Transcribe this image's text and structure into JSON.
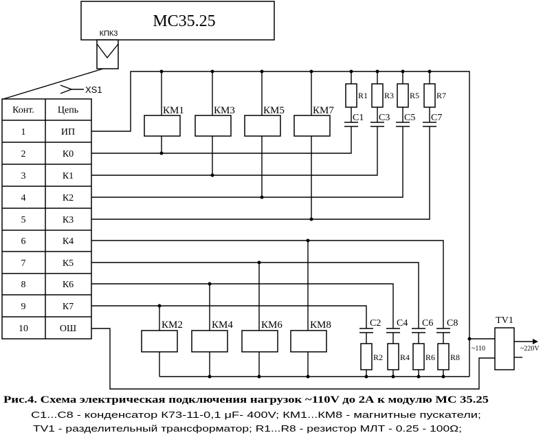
{
  "module": {
    "title": "МС35.25",
    "connector": "КПК3"
  },
  "connector_label": "XS1",
  "table": {
    "headers": [
      "Конт.",
      "Цепь"
    ],
    "rows": [
      [
        "1",
        "ИП"
      ],
      [
        "2",
        "К0"
      ],
      [
        "3",
        "К1"
      ],
      [
        "4",
        "К2"
      ],
      [
        "5",
        "К3"
      ],
      [
        "6",
        "К4"
      ],
      [
        "7",
        "К5"
      ],
      [
        "8",
        "К6"
      ],
      [
        "9",
        "К7"
      ],
      [
        "10",
        "ОШ"
      ]
    ]
  },
  "relays": {
    "top": [
      "КМ1",
      "КМ3",
      "КМ5",
      "КМ7"
    ],
    "bottom": [
      "КМ2",
      "КМ4",
      "КМ6",
      "КМ8"
    ]
  },
  "snubbers": {
    "top": [
      {
        "r": "R1",
        "c": "C1"
      },
      {
        "r": "R3",
        "c": "C3"
      },
      {
        "r": "R5",
        "c": "C5"
      },
      {
        "r": "R7",
        "c": "C7"
      }
    ],
    "bottom": [
      {
        "r": "R2",
        "c": "C2"
      },
      {
        "r": "R4",
        "c": "C4"
      },
      {
        "r": "R6",
        "c": "C6"
      },
      {
        "r": "R8",
        "c": "C8"
      }
    ]
  },
  "transformer": {
    "label": "TV1",
    "input": "~110",
    "output": "~220V"
  },
  "caption": {
    "title": "Рис.4. Схема электрическая подключения нагрузок ~110V до 2А  к модулю МС 35.25",
    "line1": "С1...С8 - конденсатор К73-11-0,1 μF- 400V;  КМ1...КМ8 - магнитные пускатели;",
    "line2": "TV1 - разделительный трансформатор;   R1...R8 - резистор МЛТ - 0.25 - 100Ω;"
  }
}
